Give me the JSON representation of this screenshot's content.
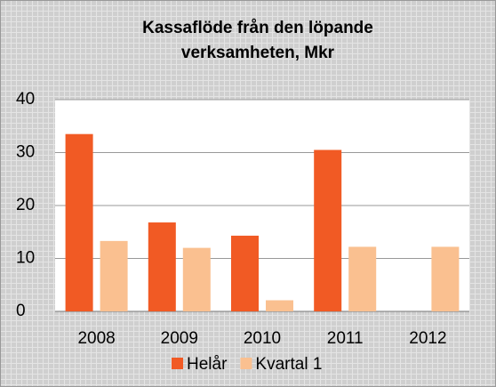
{
  "chart_data": {
    "type": "bar",
    "title": [
      "Kassaflöde från den löpande",
      "verksamheten, Mkr"
    ],
    "categories": [
      "2008",
      "2009",
      "2010",
      "2011",
      "2012"
    ],
    "series": [
      {
        "name": "Helår",
        "color": "#f15a24",
        "values": [
          33.5,
          16.8,
          14.3,
          30.5,
          null
        ]
      },
      {
        "name": "Kvartal 1",
        "color": "#fac090",
        "values": [
          13.3,
          12.0,
          2.1,
          12.2,
          12.2
        ]
      }
    ],
    "ylim": [
      0,
      40
    ],
    "yticks": [
      0,
      10,
      20,
      30,
      40
    ],
    "grid": true,
    "legend": "bottom"
  }
}
